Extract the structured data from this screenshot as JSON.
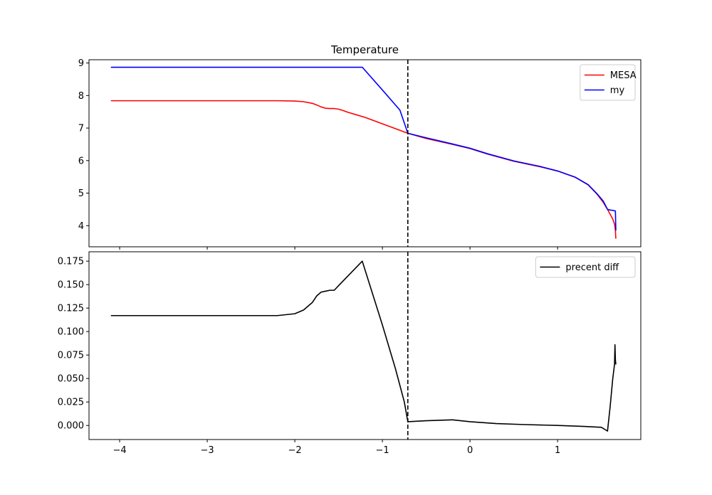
{
  "chart_data": [
    {
      "type": "line",
      "title": "Temperature",
      "xlabel": "",
      "ylabel": "",
      "xlim": [
        -4.35,
        1.95
      ],
      "ylim": [
        3.35,
        9.1
      ],
      "xticks": [
        -4,
        -3,
        -2,
        -1,
        0,
        1
      ],
      "xtick_labels": [
        "",
        "",
        "",
        "",
        "",
        ""
      ],
      "yticks": [
        4,
        5,
        6,
        7,
        8,
        9
      ],
      "ytick_labels": [
        "4",
        "5",
        "6",
        "7",
        "8",
        "9"
      ],
      "grid": false,
      "legend": "top-right",
      "vline": {
        "x": -0.71,
        "style": "dashed",
        "color": "#000000"
      },
      "series": [
        {
          "name": "MESA",
          "color": "#ff0000",
          "x": [
            -4.1,
            -3.5,
            -3.0,
            -2.5,
            -2.2,
            -2.0,
            -1.9,
            -1.8,
            -1.75,
            -1.7,
            -1.65,
            -1.6,
            -1.55,
            -1.5,
            -1.45,
            -1.4,
            -1.3,
            -1.2,
            -1.1,
            -1.0,
            -0.9,
            -0.8,
            -0.71,
            -0.5,
            -0.2,
            0.0,
            0.2,
            0.5,
            0.8,
            1.0,
            1.2,
            1.35,
            1.45,
            1.52,
            1.57,
            1.6,
            1.63,
            1.65,
            1.66,
            1.665
          ],
          "y": [
            7.84,
            7.84,
            7.84,
            7.84,
            7.84,
            7.83,
            7.81,
            7.76,
            7.71,
            7.65,
            7.61,
            7.6,
            7.6,
            7.58,
            7.54,
            7.49,
            7.41,
            7.33,
            7.23,
            7.13,
            7.03,
            6.93,
            6.84,
            6.68,
            6.5,
            6.37,
            6.2,
            5.98,
            5.81,
            5.68,
            5.49,
            5.25,
            4.97,
            4.72,
            4.5,
            4.35,
            4.2,
            4.05,
            3.85,
            3.6
          ]
        },
        {
          "name": "my",
          "color": "#0000ff",
          "x": [
            -4.1,
            -3.5,
            -3.0,
            -2.5,
            -2.0,
            -1.5,
            -1.23,
            -1.0,
            -0.8,
            -0.71,
            -0.5,
            -0.2,
            0.0,
            0.2,
            0.5,
            0.8,
            1.0,
            1.2,
            1.35,
            1.45,
            1.52,
            1.57,
            1.6,
            1.63,
            1.66,
            1.665
          ],
          "y": [
            8.87,
            8.87,
            8.87,
            8.87,
            8.87,
            8.87,
            8.87,
            8.17,
            7.55,
            6.84,
            6.7,
            6.51,
            6.38,
            6.21,
            5.99,
            5.82,
            5.68,
            5.49,
            5.26,
            4.98,
            4.76,
            4.5,
            4.48,
            4.47,
            4.45,
            3.85
          ]
        }
      ]
    },
    {
      "type": "line",
      "title": "",
      "xlabel": "",
      "ylabel": "",
      "xlim": [
        -4.35,
        1.95
      ],
      "ylim": [
        -0.015,
        0.185
      ],
      "xticks": [
        -4,
        -3,
        -2,
        -1,
        0,
        1
      ],
      "xtick_labels": [
        "−4",
        "−3",
        "−2",
        "−1",
        "0",
        "1"
      ],
      "yticks": [
        0.0,
        0.025,
        0.05,
        0.075,
        0.1,
        0.125,
        0.15,
        0.175
      ],
      "ytick_labels": [
        "0.000",
        "0.025",
        "0.050",
        "0.075",
        "0.100",
        "0.125",
        "0.150",
        "0.175"
      ],
      "grid": false,
      "legend": "top-right",
      "vline": {
        "x": -0.71,
        "style": "dashed",
        "color": "#000000"
      },
      "series": [
        {
          "name": "precent diff",
          "color": "#000000",
          "x": [
            -4.1,
            -3.5,
            -3.0,
            -2.5,
            -2.2,
            -2.0,
            -1.9,
            -1.8,
            -1.75,
            -1.7,
            -1.65,
            -1.6,
            -1.55,
            -1.5,
            -1.23,
            -1.0,
            -0.85,
            -0.75,
            -0.71,
            -0.5,
            -0.2,
            0.0,
            0.3,
            0.6,
            1.0,
            1.3,
            1.5,
            1.57,
            1.6,
            1.63,
            1.65,
            1.655,
            1.66,
            1.665
          ],
          "y": [
            0.117,
            0.117,
            0.117,
            0.117,
            0.117,
            0.119,
            0.123,
            0.131,
            0.138,
            0.142,
            0.143,
            0.144,
            0.144,
            0.149,
            0.175,
            0.107,
            0.06,
            0.025,
            0.004,
            0.005,
            0.006,
            0.004,
            0.002,
            0.001,
            0.0,
            -0.001,
            -0.002,
            -0.006,
            0.02,
            0.05,
            0.065,
            0.086,
            0.07,
            0.065
          ]
        }
      ]
    }
  ]
}
